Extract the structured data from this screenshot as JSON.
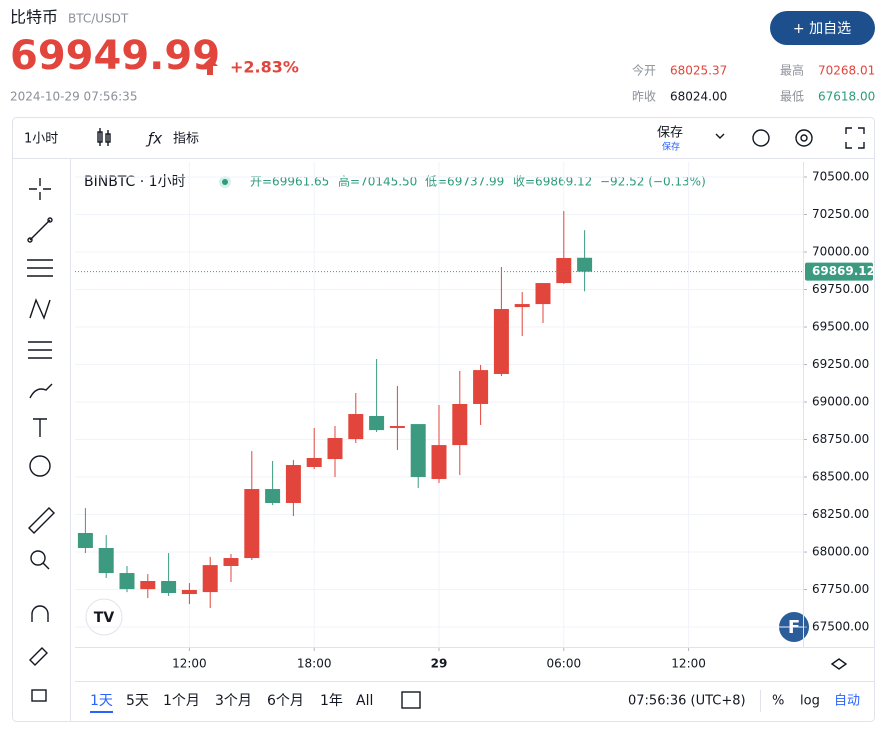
{
  "header": {
    "name": "比特币",
    "pair": "BTC/USDT",
    "price": "69949.99",
    "change": "+2.83%",
    "timestamp": "2024-10-29 07:56:35",
    "button": "+ 加自选",
    "stats": [
      {
        "label": "今开",
        "value": "68025.37"
      },
      {
        "label": "最高",
        "value": "70268.01"
      },
      {
        "label": "昨收",
        "value": "68024.00"
      },
      {
        "label": "最低",
        "value": "67618.00"
      }
    ]
  },
  "toolbar": {
    "interval": "1小时",
    "indicators": "指标",
    "save": "保存",
    "save_sub": "保存"
  },
  "chart_data": {
    "type": "candlestick",
    "title": "BINBTC · 1小时",
    "ohlc_legend": [
      "开=69961.65",
      "高=70145.50",
      "低=69737.99",
      "收=69869.12",
      "−92.52 (−0.13%)"
    ],
    "x": [
      7,
      8,
      9,
      10,
      11,
      12,
      13,
      14,
      15,
      16,
      17,
      18,
      19,
      20,
      21,
      22,
      23,
      24,
      25,
      26,
      27,
      28,
      29,
      30,
      31
    ],
    "open": [
      68127,
      68027,
      67860,
      67753,
      67807,
      67720,
      67733,
      67907,
      67960,
      68420,
      68327,
      68567,
      68620,
      68753,
      68907,
      68827,
      68853,
      68487,
      68713,
      68987,
      69187,
      69633,
      69653,
      69793,
      69961.65
    ],
    "high": [
      68293,
      68113,
      67907,
      67853,
      67993,
      67793,
      67967,
      67987,
      68673,
      68607,
      68613,
      68827,
      68840,
      69060,
      69287,
      69107,
      68853,
      68980,
      69207,
      69247,
      69900,
      69733,
      69793,
      70273,
      70145.5
    ],
    "low": [
      67993,
      67827,
      67733,
      67693,
      67707,
      67653,
      67627,
      67800,
      67947,
      68313,
      68240,
      68553,
      68500,
      68727,
      68800,
      68680,
      68427,
      68460,
      68513,
      68847,
      69173,
      69440,
      69527,
      69787,
      69737.99
    ],
    "close": [
      68027,
      67860,
      67753,
      67807,
      67727,
      67747,
      67913,
      67960,
      68420,
      68327,
      68580,
      68627,
      68760,
      68920,
      68813,
      68840,
      68500,
      68713,
      68987,
      69213,
      69620,
      69653,
      69793,
      69960,
      69869.12
    ],
    "xlim": [
      6.5,
      41.5
    ],
    "xticks": [
      {
        "value": 12,
        "label": "12:00"
      },
      {
        "value": 18,
        "label": "18:00"
      },
      {
        "value": 24,
        "label": "29"
      },
      {
        "value": 30,
        "label": "06:00"
      },
      {
        "value": 36,
        "label": "12:00"
      }
    ],
    "ylim": [
      67367,
      70600
    ],
    "yticks": [
      {
        "value": 67500,
        "label": "67500.00"
      },
      {
        "value": 67750,
        "label": "67750.00"
      },
      {
        "value": 68000,
        "label": "68000.00"
      },
      {
        "value": 68250,
        "label": "68250.00"
      },
      {
        "value": 68500,
        "label": "68500.00"
      },
      {
        "value": 68750,
        "label": "68750.00"
      },
      {
        "value": 69000,
        "label": "69000.00"
      },
      {
        "value": 69250,
        "label": "69250.00"
      },
      {
        "value": 69500,
        "label": "69500.00"
      },
      {
        "value": 69750,
        "label": "69750.00"
      },
      {
        "value": 70000,
        "label": "70000.00"
      },
      {
        "value": 70250,
        "label": "70250.00"
      },
      {
        "value": 70500,
        "label": "70500.00"
      }
    ],
    "last_price": 69869.12,
    "up_color": "#e2453c",
    "down_color": "#3b9a7f",
    "grid": true
  },
  "footer": {
    "ranges": [
      "1天",
      "5天",
      "1个月",
      "3个月",
      "6个月",
      "1年",
      "All"
    ],
    "time": "07:56:36 (UTC+8)",
    "percent": "%",
    "log": "log",
    "auto": "自动"
  }
}
